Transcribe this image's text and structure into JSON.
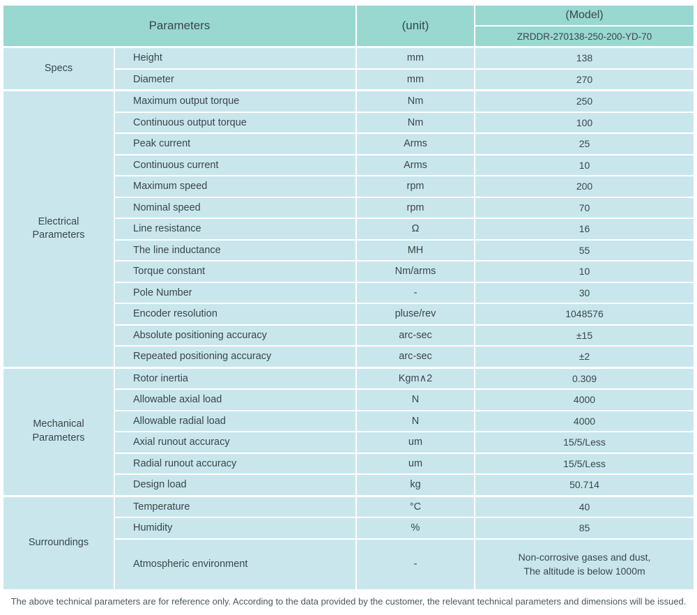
{
  "header": {
    "parameters_label": "Parameters",
    "unit_label": "(unit)",
    "model_label": "(Model)",
    "model_value": "ZRDDR-270138-250-200-YD-70"
  },
  "sections": [
    {
      "label": "Specs",
      "rows": [
        {
          "param": "Height",
          "unit": "mm",
          "value": "138"
        },
        {
          "param": "Diameter",
          "unit": "mm",
          "value": "270"
        }
      ]
    },
    {
      "label": "Electrical Parameters",
      "rows": [
        {
          "param": "Maximum output torque",
          "unit": "Nm",
          "value": "250"
        },
        {
          "param": "Continuous output torque",
          "unit": "Nm",
          "value": "100"
        },
        {
          "param": "Peak current",
          "unit": "Arms",
          "value": "25"
        },
        {
          "param": "Continuous current",
          "unit": "Arms",
          "value": "10"
        },
        {
          "param": "Maximum speed",
          "unit": "rpm",
          "value": "200"
        },
        {
          "param": "Nominal speed",
          "unit": "rpm",
          "value": "70"
        },
        {
          "param": "Line resistance",
          "unit": "Ω",
          "value": "16"
        },
        {
          "param": "The line inductance",
          "unit": "MH",
          "value": "55"
        },
        {
          "param": "Torque constant",
          "unit": "Nm/arms",
          "value": "10"
        },
        {
          "param": "Pole Number",
          "unit": "-",
          "value": "30"
        },
        {
          "param": "Encoder resolution",
          "unit": "pluse/rev",
          "value": "1048576"
        },
        {
          "param": "Absolute positioning accuracy",
          "unit": "arc-sec",
          "value": "±15"
        },
        {
          "param": "Repeated positioning accuracy",
          "unit": "arc-sec",
          "value": "±2"
        }
      ]
    },
    {
      "label": "Mechanical Parameters",
      "rows": [
        {
          "param": "Rotor inertia",
          "unit": "Kgm∧2",
          "value": "0.309"
        },
        {
          "param": "Allowable axial load",
          "unit": "N",
          "value": "4000"
        },
        {
          "param": "Allowable radial load",
          "unit": "N",
          "value": "4000"
        },
        {
          "param": "Axial runout accuracy",
          "unit": "um",
          "value": "15/5/Less"
        },
        {
          "param": "Radial runout accuracy",
          "unit": "um",
          "value": "15/5/Less"
        },
        {
          "param": "Design load",
          "unit": "kg",
          "value": "50.714"
        }
      ]
    },
    {
      "label": "Surroundings",
      "rows": [
        {
          "param": "Temperature",
          "unit": "°C",
          "value": "40"
        },
        {
          "param": "Humidity",
          "unit": "%",
          "value": "85"
        },
        {
          "param": "Atmospheric environment",
          "unit": "-",
          "value": "Non-corrosive gases and dust,\nThe altitude is below 1000m"
        }
      ]
    }
  ],
  "footer": {
    "note": "The above technical parameters are for reference only. According to the data provided by the customer, the relevant technical parameters and dimensions will be issued."
  },
  "colors": {
    "header_bg": "#98d8d1",
    "row_bg": "#c9e6ed",
    "text": "#3a4649",
    "page_bg": "#ffffff"
  }
}
